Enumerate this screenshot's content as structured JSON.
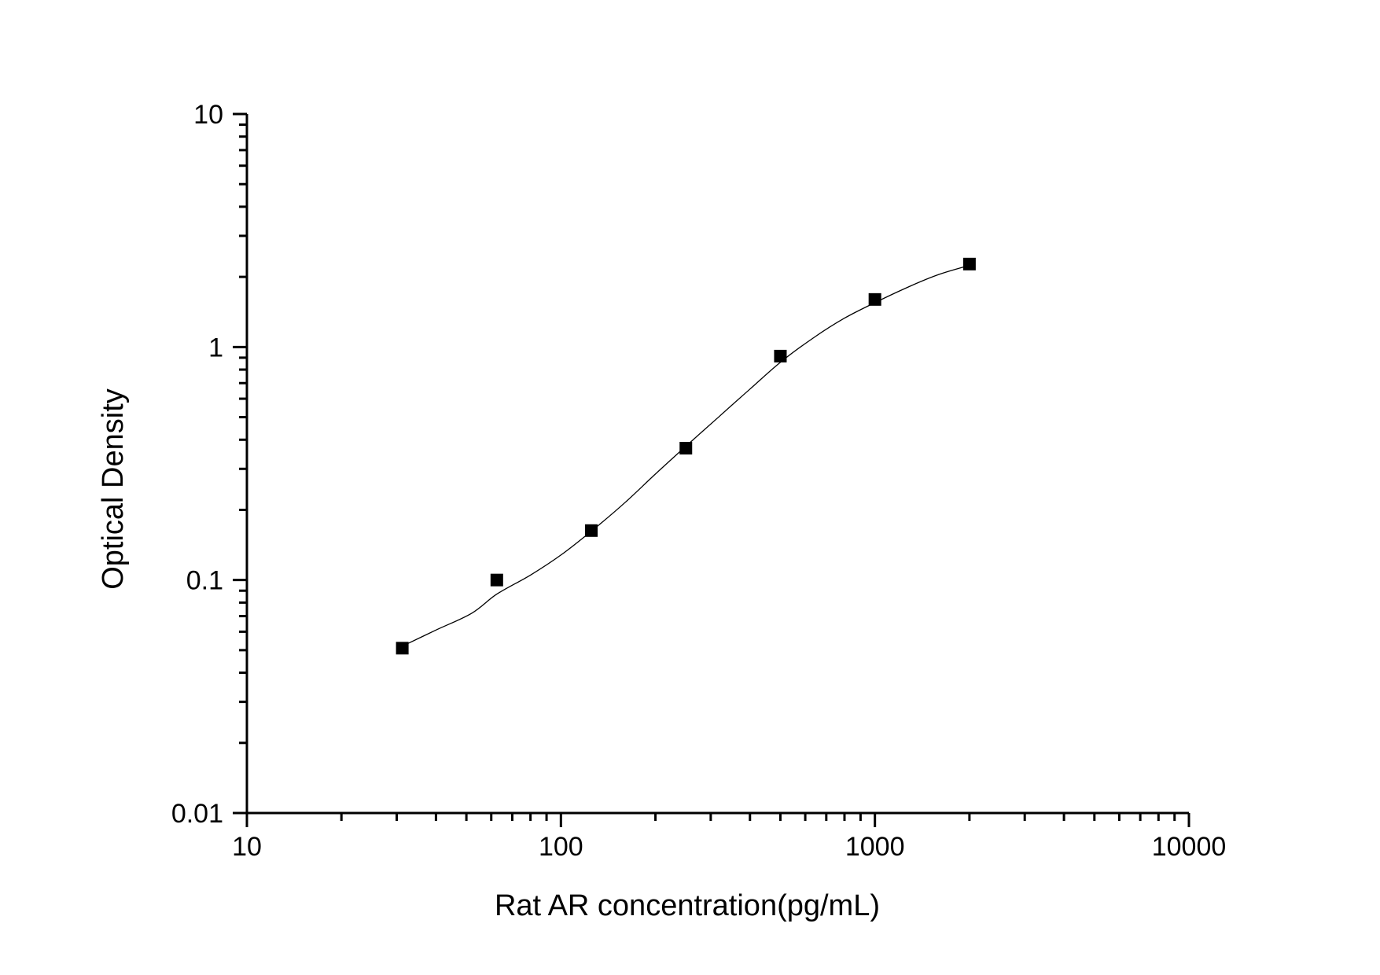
{
  "chart_data": {
    "type": "scatter",
    "title": "",
    "xlabel": "Rat AR concentration(pg/mL)",
    "ylabel": "Optical Density",
    "xscale": "log",
    "yscale": "log",
    "xlim": [
      10,
      10000
    ],
    "ylim": [
      0.01,
      10
    ],
    "grid": false,
    "legend": null,
    "x_ticks": [
      10,
      100,
      1000,
      10000
    ],
    "x_tick_labels": [
      "10",
      "100",
      "1000",
      "10000"
    ],
    "y_ticks": [
      0.01,
      0.1,
      1,
      10
    ],
    "y_tick_labels": [
      "0.01",
      "0.1",
      "1",
      "10"
    ],
    "series": [
      {
        "name": "Standard points",
        "kind": "scatter",
        "marker": "square",
        "color": "#000000",
        "x": [
          31.25,
          62.5,
          125,
          250,
          500,
          1000,
          2000
        ],
        "y": [
          0.051,
          0.1,
          0.163,
          0.368,
          0.914,
          1.6,
          2.27
        ]
      },
      {
        "name": "Fitted curve",
        "kind": "line",
        "color": "#000000",
        "x": [
          31.25,
          40,
          52,
          62.5,
          80,
          100,
          125,
          160,
          200,
          250,
          320,
          400,
          500,
          640,
          800,
          1000,
          1300,
          1600,
          2000
        ],
        "y": [
          0.052,
          0.061,
          0.072,
          0.087,
          0.105,
          0.128,
          0.162,
          0.215,
          0.285,
          0.375,
          0.505,
          0.66,
          0.86,
          1.1,
          1.33,
          1.55,
          1.83,
          2.05,
          2.24
        ]
      }
    ]
  },
  "axes": {
    "x_title": "Rat AR concentration(pg/mL)",
    "y_title": "Optical Density"
  }
}
